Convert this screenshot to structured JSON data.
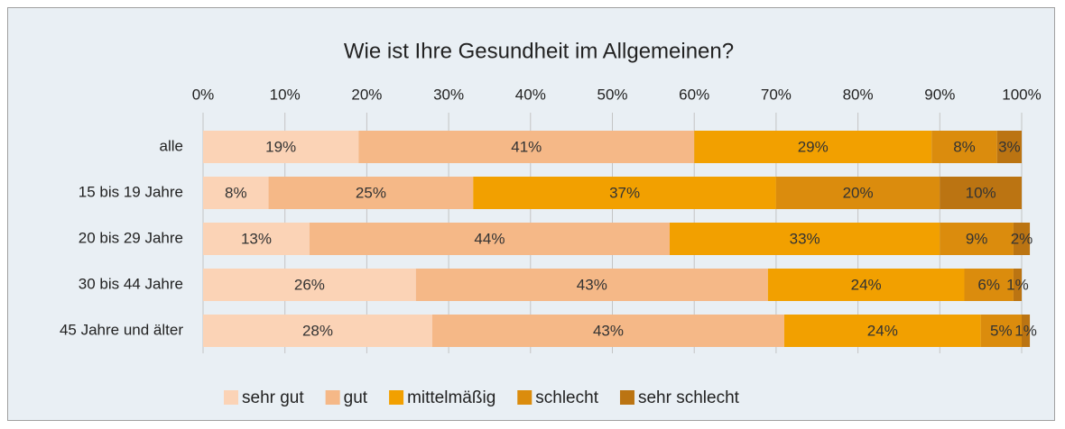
{
  "chart_data": {
    "type": "stacked_bar_horizontal",
    "title": "Wie ist Ihre Gesundheit im Allgemeinen?",
    "categories": [
      "alle",
      "15 bis 19 Jahre",
      "20 bis 29 Jahre",
      "30 bis 44 Jahre",
      "45 Jahre und älter"
    ],
    "series": [
      {
        "name": "sehr gut",
        "color": "#fbd3b6",
        "values": [
          19,
          8,
          13,
          26,
          28
        ],
        "value_labels": [
          "19%",
          "8%",
          "13%",
          "26%",
          "28%"
        ]
      },
      {
        "name": "gut",
        "color": "#f5b887",
        "values": [
          41,
          25,
          44,
          43,
          43
        ],
        "value_labels": [
          "41%",
          "25%",
          "44%",
          "43%",
          "43%"
        ]
      },
      {
        "name": "mittelmäßig",
        "color": "#f2a000",
        "values": [
          29,
          37,
          33,
          24,
          24
        ],
        "value_labels": [
          "29%",
          "37%",
          "33%",
          "24%",
          "24%"
        ]
      },
      {
        "name": "schlecht",
        "color": "#db8c0d",
        "values": [
          8,
          20,
          9,
          6,
          5
        ],
        "value_labels": [
          "8%",
          "20%",
          "9%",
          "6%",
          "5%"
        ]
      },
      {
        "name": "sehr schlecht",
        "color": "#bb7412",
        "values": [
          3,
          10,
          2,
          1,
          1
        ],
        "value_labels": [
          "3%",
          "10%",
          "2%",
          "1%",
          "1%"
        ]
      }
    ],
    "xlim": [
      0,
      100
    ],
    "xticks": [
      {
        "value": 0,
        "label": "0%"
      },
      {
        "value": 10,
        "label": "10%"
      },
      {
        "value": 20,
        "label": "20%"
      },
      {
        "value": 30,
        "label": "30%"
      },
      {
        "value": 40,
        "label": "40%"
      },
      {
        "value": 50,
        "label": "50%"
      },
      {
        "value": 60,
        "label": "60%"
      },
      {
        "value": 70,
        "label": "70%"
      },
      {
        "value": 80,
        "label": "80%"
      },
      {
        "value": 90,
        "label": "90%"
      },
      {
        "value": 100,
        "label": "100%"
      }
    ],
    "grid": true,
    "legend": "bottom"
  }
}
